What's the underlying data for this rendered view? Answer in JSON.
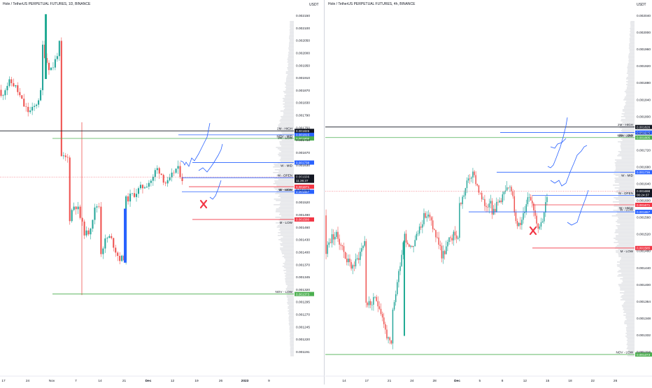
{
  "colors": {
    "up": "#26a69a",
    "down": "#ef5350",
    "up_big": "#22ab94",
    "blue": "#2962ff",
    "green_line": "#4caf50",
    "red_line": "#f23645",
    "black_line": "#131722",
    "level_blue": "#2962ff"
  },
  "chart_data": [
    {
      "type": "candlestick",
      "title": "Hole / TetherUS PERPETUAL FUTURES, 1D, BINANCE",
      "unit": "USDT",
      "ylim": [
        0.00118,
        0.00217
      ],
      "y_ticks": [
        "0.002150",
        "0.002100",
        "0.002050",
        "0.002000",
        "0.001950",
        "0.001910",
        "0.001870",
        "0.001830",
        "0.001790",
        "0.001750",
        "0.001710",
        "0.001670",
        "0.001630",
        "0.001590",
        "0.001550",
        "0.001520",
        "0.001490",
        "0.001460",
        "0.001430",
        "0.001400",
        "0.001370",
        "0.001345",
        "0.001320",
        "0.001295",
        "0.001270",
        "0.001245",
        "0.001220",
        "0.001191"
      ],
      "x_ticks": [
        "17",
        "24",
        "Nov",
        "7",
        "14",
        "21",
        "Dec",
        "12",
        "19",
        "26",
        "2023",
        "9"
      ],
      "levels": [
        {
          "label": "2M - HIGH",
          "value": 0.001826,
          "price": "0.001826",
          "color": "black"
        },
        {
          "label": "2M - LOW",
          "value": 0.001815,
          "price": "0.001815",
          "color": "blue"
        },
        {
          "label": "NOV - MID",
          "value": 0.001805,
          "price": "0.001805",
          "color": "green"
        },
        {
          "label": "W - MID",
          "value": 0.001738,
          "price": "0.001738",
          "color": "blue"
        },
        {
          "label": "W - OPEN",
          "value": 0.001696,
          "price": "0.001696",
          "color": "blue"
        },
        {
          "label": "W - HIGH",
          "value": 0.001671,
          "price": "0.001671",
          "color": "red"
        },
        {
          "label": "W - LOW",
          "value": 0.001657,
          "price": "0.001657",
          "color": "blue"
        },
        {
          "label": "M - LOW",
          "value": 0.00158,
          "price": "0.001580",
          "color": "red"
        },
        {
          "label": "NOV - LOW",
          "value": 0.001373,
          "price": "0.001373",
          "color": "green"
        }
      ],
      "current_price": "0.001698",
      "countdown": "11:36:37",
      "extra_price": "0.001687"
    },
    {
      "type": "candlestick",
      "title": "Hole / TetherUS PERPETUAL FUTURES, 4h, BINANCE",
      "unit": "USDT",
      "ylim": [
        0.001355,
        0.002065
      ],
      "y_ticks": [
        "0.002040",
        "0.002000",
        "0.001960",
        "0.001920",
        "0.001880",
        "0.001840",
        "0.001800",
        "0.001760",
        "0.001720",
        "0.001680",
        "0.001640",
        "0.001600",
        "0.001560",
        "0.001520",
        "0.001480",
        "0.001440",
        "0.001400",
        "0.001364",
        "0.001348",
        "0.001332",
        "0.001316"
      ],
      "x_ticks": [
        "14",
        "17",
        "21",
        "24",
        "28",
        "Dec",
        "5",
        "8",
        "12",
        "15",
        "18",
        "22",
        "26"
      ],
      "levels": [
        {
          "label": "2M - HIGH",
          "value": 0.001826,
          "price": "0.001826",
          "color": "black"
        },
        {
          "label": "2M - LOW",
          "value": 0.001815,
          "price": "0.001815",
          "color": "blue"
        },
        {
          "label": "NOV - MID",
          "value": 0.001805,
          "price": "0.001805",
          "color": "green"
        },
        {
          "label": "W - MID",
          "value": 0.001736,
          "price": "0.001736",
          "color": "blue"
        },
        {
          "label": "W - OPEN",
          "value": 0.00169,
          "price": "0.001690",
          "color": "blue"
        },
        {
          "label": "W - HIGH",
          "value": 0.001671,
          "price": "0.001671",
          "color": "red"
        },
        {
          "label": "W - LOW",
          "value": 0.001657,
          "price": "0.001657",
          "color": "blue"
        },
        {
          "label": "M - LOW",
          "value": 0.001585,
          "price": "0.001585",
          "color": "red"
        },
        {
          "label": "NOV - LOW",
          "value": 0.001373,
          "price": "0.001373",
          "color": "green"
        }
      ],
      "current_price": "0.001698",
      "countdown": "00:24:37",
      "extra_price": "0.001687"
    }
  ]
}
